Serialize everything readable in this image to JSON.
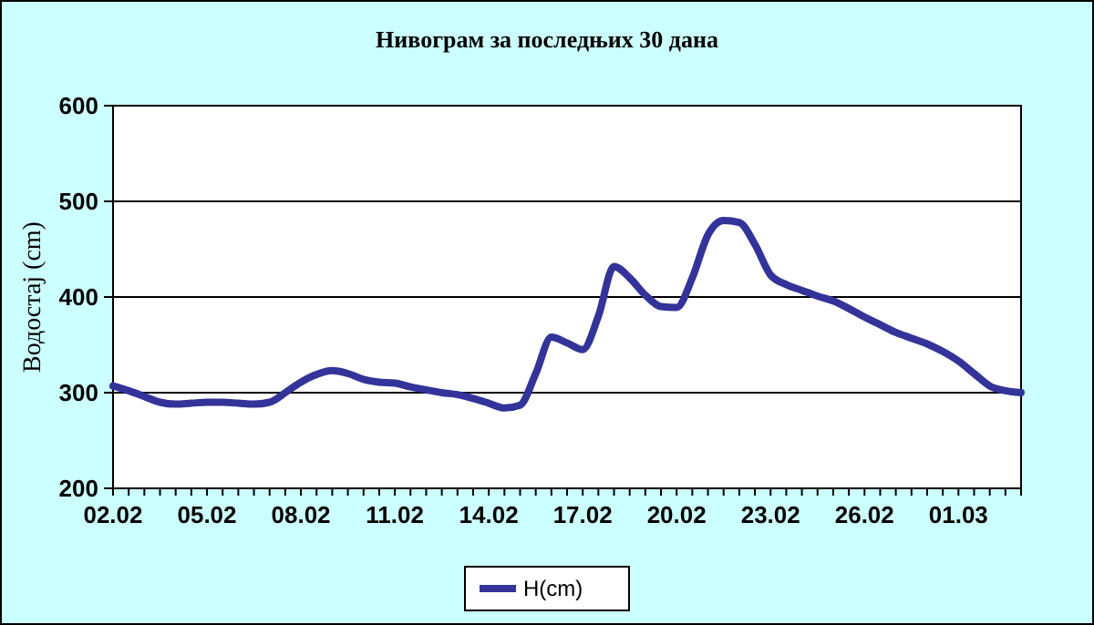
{
  "chart_data": {
    "type": "line",
    "title": "Нивограм за последњих 30 дана",
    "ylabel": "Водостај (cm)",
    "categories": [
      "02.02",
      null,
      null,
      null,
      null,
      null,
      "05.02",
      null,
      null,
      null,
      null,
      null,
      "08.02",
      null,
      null,
      null,
      null,
      null,
      "11.02",
      null,
      null,
      null,
      null,
      null,
      "14.02",
      null,
      null,
      null,
      null,
      null,
      "17.02",
      null,
      null,
      null,
      null,
      null,
      "20.02",
      null,
      null,
      null,
      null,
      null,
      "23.02",
      null,
      null,
      null,
      null,
      null,
      "26.02",
      null,
      null,
      null,
      null,
      null,
      "01.03",
      null,
      null,
      null,
      null
    ],
    "series": [
      {
        "name": "H(cm)",
        "color": "#333399",
        "values": [
          307,
          302,
          296,
          290,
          288,
          289,
          290,
          290,
          289,
          288,
          290,
          300,
          311,
          319,
          323,
          320,
          314,
          311,
          310,
          306,
          303,
          300,
          298,
          294,
          289,
          284,
          287,
          320,
          358,
          352,
          345,
          380,
          432,
          420,
          402,
          390,
          389,
          420,
          465,
          480,
          478,
          455,
          423,
          413,
          407,
          401,
          396,
          388,
          379,
          371,
          363,
          357,
          351,
          343,
          333,
          320,
          307,
          302,
          300
        ]
      }
    ],
    "ylim": [
      200,
      600
    ],
    "yticks": [
      200,
      300,
      400,
      500,
      600
    ],
    "grid": "y",
    "legend": "bottom",
    "marker": "none",
    "line_style": "solid"
  }
}
